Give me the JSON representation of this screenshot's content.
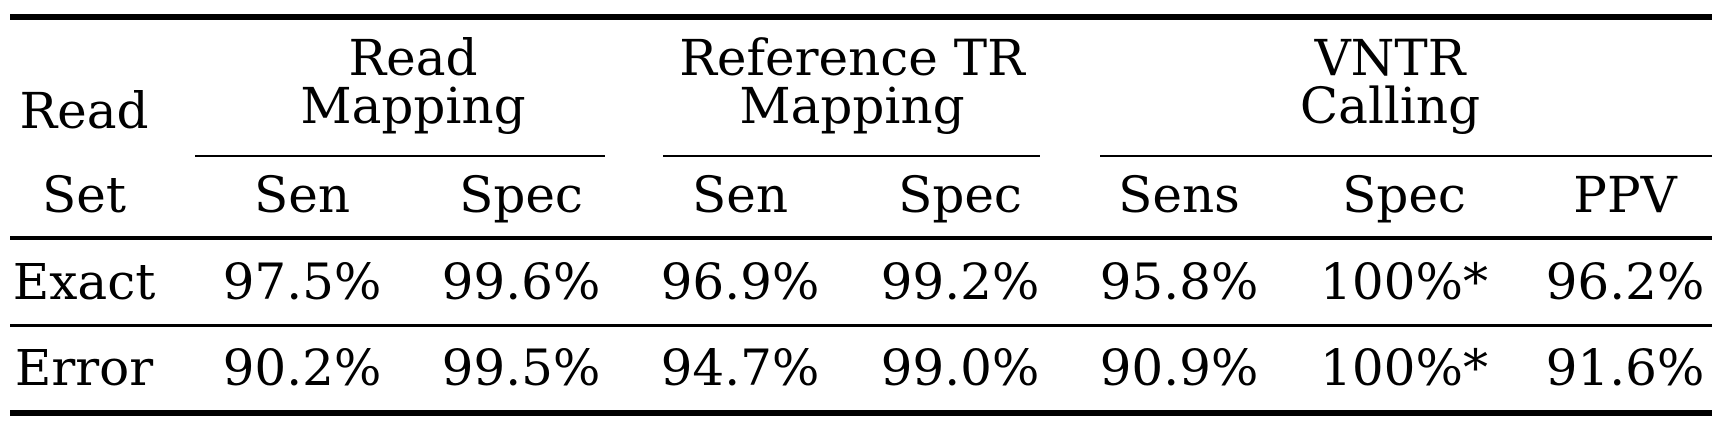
{
  "table": {
    "stub_header": {
      "line1": "Read",
      "line2": "Set"
    },
    "groups": [
      {
        "line1": "Read",
        "line2": "Mapping"
      },
      {
        "line1": "Reference TR",
        "line2": "Mapping"
      },
      {
        "line1": "VNTR",
        "line2": "Calling"
      }
    ],
    "columns": [
      "Sen",
      "Spec",
      "Sen",
      "Spec",
      "Sens",
      "Spec",
      "PPV"
    ],
    "rows": [
      {
        "label": "Exact",
        "cells": [
          "97.5%",
          "99.6%",
          "96.9%",
          "99.2%",
          "95.8%",
          "100%*",
          "96.2%"
        ]
      },
      {
        "label": "Error",
        "cells": [
          "90.2%",
          "99.5%",
          "94.7%",
          "99.0%",
          "90.9%",
          "100%*",
          "91.6%"
        ]
      }
    ]
  }
}
